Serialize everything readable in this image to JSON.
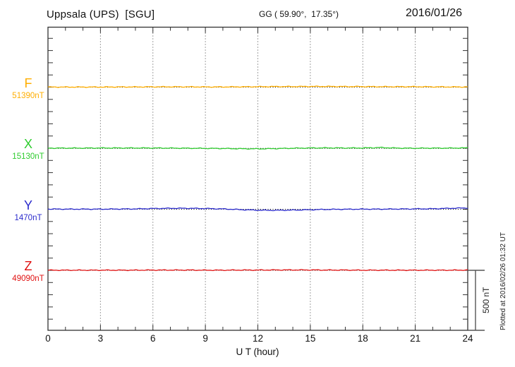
{
  "header": {
    "station": "Uppsala (UPS)  [SGU]",
    "coords": "GG ( 59.90°,  17.35°)",
    "date": "2016/01/26"
  },
  "chart_data": {
    "type": "line",
    "title": "Uppsala (UPS) [SGU] magnetogram 2016/01/26",
    "xlabel": "U T (hour)",
    "x_range": [
      0,
      24
    ],
    "x_ticks": [
      0,
      3,
      6,
      9,
      12,
      15,
      18,
      21,
      24
    ],
    "x_minor_step_hours": 1,
    "y_minor_tick_nT": 100,
    "grid": "vertical dotted lines every 3 hours; dotted black baseline under each trace",
    "legend_position": "left margin channel labels",
    "scale_bar": {
      "label": "500 nT",
      "nT": 500
    },
    "plotted_note": "Plotted at 2016/02/26 01:32 UT",
    "series": [
      {
        "name": "F",
        "baseline_label": "51390nT",
        "baseline_nT": 51390,
        "color": "#FFAE00",
        "x_hours": [
          0,
          1,
          2,
          3,
          4,
          5,
          6,
          7,
          8,
          9,
          10,
          11,
          12,
          13,
          14,
          15,
          16,
          17,
          18,
          19,
          20,
          21,
          22,
          23,
          24
        ],
        "deviation_nT": [
          1,
          1,
          1,
          1,
          2,
          2,
          3,
          3,
          3,
          2,
          2,
          3,
          4,
          5,
          5,
          6,
          6,
          5,
          5,
          4,
          4,
          4,
          3,
          2,
          2
        ]
      },
      {
        "name": "X",
        "baseline_label": "15130nT",
        "baseline_nT": 15130,
        "color": "#2ECC2E",
        "x_hours": [
          0,
          1,
          2,
          3,
          4,
          5,
          6,
          7,
          8,
          9,
          10,
          11,
          12,
          13,
          14,
          15,
          16,
          17,
          18,
          19,
          20,
          21,
          22,
          23,
          24
        ],
        "deviation_nT": [
          2,
          2,
          2,
          3,
          3,
          3,
          3,
          2,
          1,
          0,
          -1,
          -3,
          -4,
          -2,
          1,
          3,
          4,
          3,
          3,
          7,
          2,
          1,
          2,
          2,
          4
        ]
      },
      {
        "name": "Y",
        "baseline_label": "1470nT",
        "baseline_nT": 1470,
        "color": "#2B2BCC",
        "x_hours": [
          0,
          1,
          2,
          3,
          4,
          5,
          6,
          7,
          8,
          9,
          10,
          11,
          12,
          13,
          14,
          15,
          16,
          17,
          18,
          19,
          20,
          21,
          22,
          23,
          24
        ],
        "deviation_nT": [
          2,
          1,
          1,
          1,
          2,
          3,
          6,
          8,
          8,
          6,
          3,
          -3,
          -8,
          -9,
          -7,
          -4,
          -1,
          0,
          1,
          1,
          2,
          3,
          4,
          8,
          11
        ]
      },
      {
        "name": "Z",
        "baseline_label": "49090nT",
        "baseline_nT": 49090,
        "color": "#E01010",
        "x_hours": [
          0,
          1,
          2,
          3,
          4,
          5,
          6,
          7,
          8,
          9,
          10,
          11,
          12,
          13,
          14,
          15,
          16,
          17,
          18,
          19,
          20,
          21,
          22,
          23,
          24
        ],
        "deviation_nT": [
          1,
          1,
          1,
          1,
          1,
          1,
          2,
          2,
          2,
          1,
          1,
          2,
          2,
          3,
          3,
          3,
          2,
          2,
          1,
          1,
          1,
          1,
          1,
          1,
          2
        ]
      }
    ]
  }
}
